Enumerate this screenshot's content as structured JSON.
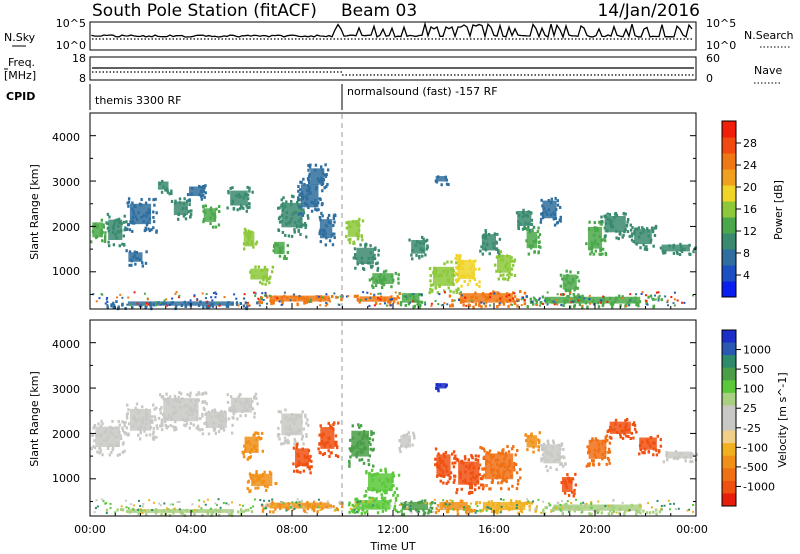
{
  "header": {
    "title": "South Pole Station (fitACF)",
    "beam": "Beam 03",
    "date": "14/Jan/2016"
  },
  "top_panels": {
    "nsky_label": "N.Sky",
    "nsearch_label": "N.Search",
    "noise_ticks": [
      "10^5",
      "10^0"
    ],
    "freq_label_line1": "Freq.",
    "freq_label_line2": "[MHz]",
    "freq_ticks": [
      "18",
      "8"
    ],
    "nave_label": "Nave",
    "nave_ticks": [
      "60",
      "0"
    ],
    "cpid_label": "CPID",
    "cpid_segments": [
      {
        "label": "themis 3300 RF",
        "start_hour": 0
      },
      {
        "label": "normalsound (fast) -157 RF",
        "start_hour": 10
      }
    ]
  },
  "x_axis": {
    "label": "Time UT",
    "ticks": [
      "00:00",
      "04:00",
      "08:00",
      "12:00",
      "16:00",
      "20:00",
      "00:00"
    ]
  },
  "chart_data": [
    {
      "type": "heatmap",
      "name": "power-panel",
      "xlabel": "Time UT",
      "ylabel": "Slant Range [km]",
      "xlim": [
        0,
        24
      ],
      "ylim": [
        180,
        4500
      ],
      "yticks": [
        "1000",
        "2000",
        "3000",
        "4000"
      ],
      "colorbar": {
        "label": "Power [dB]",
        "ticks": [
          "4",
          "8",
          "12",
          "16",
          "20",
          "24",
          "28"
        ],
        "min": 0,
        "max": 32,
        "colors": [
          "#0a1ef0",
          "#1c4fc2",
          "#2f6e9e",
          "#3a8a70",
          "#4aa84a",
          "#8cc83a",
          "#f0d428",
          "#f0a020",
          "#f07814",
          "#f04a10",
          "#f01e0a"
        ]
      },
      "cells": [
        [
          0,
          0.6,
          1650,
          2200,
          13
        ],
        [
          0.6,
          1.4,
          1550,
          2300,
          10
        ],
        [
          1.4,
          2.6,
          1900,
          2650,
          7
        ],
        [
          1.4,
          2.2,
          1150,
          1500,
          7
        ],
        [
          2.6,
          3.2,
          2750,
          3050,
          9
        ],
        [
          3.2,
          4.0,
          2150,
          2650,
          9
        ],
        [
          3.8,
          4.6,
          2600,
          2950,
          8
        ],
        [
          4.4,
          5.1,
          2000,
          2500,
          14
        ],
        [
          5.4,
          6.4,
          2350,
          2900,
          11
        ],
        [
          6.0,
          6.6,
          1450,
          2000,
          15
        ],
        [
          6.2,
          7.2,
          750,
          1150,
          17
        ],
        [
          7.2,
          7.8,
          1300,
          1750,
          12
        ],
        [
          7.4,
          8.6,
          1800,
          2700,
          10
        ],
        [
          8.2,
          9.2,
          2250,
          3100,
          8
        ],
        [
          8.6,
          9.4,
          2800,
          3400,
          7
        ],
        [
          9.0,
          9.7,
          1600,
          2300,
          6
        ],
        [
          10.1,
          10.8,
          1650,
          2250,
          15
        ],
        [
          10.4,
          11.4,
          1050,
          1650,
          11
        ],
        [
          11.0,
          12.2,
          650,
          1050,
          12
        ],
        [
          12.2,
          13.2,
          250,
          600,
          14
        ],
        [
          12.6,
          13.4,
          1300,
          1800,
          10
        ],
        [
          13.4,
          14.6,
          550,
          1250,
          15
        ],
        [
          14.4,
          15.4,
          700,
          1400,
          19
        ],
        [
          15.4,
          16.2,
          1350,
          1950,
          11
        ],
        [
          16.0,
          16.8,
          850,
          1500,
          17
        ],
        [
          16.8,
          17.6,
          1900,
          2450,
          9
        ],
        [
          17.2,
          17.8,
          1400,
          2000,
          14
        ],
        [
          17.8,
          18.6,
          2050,
          2700,
          8
        ],
        [
          18.6,
          19.4,
          500,
          1050,
          13
        ],
        [
          19.6,
          20.4,
          1350,
          2150,
          12
        ],
        [
          20.2,
          21.4,
          1750,
          2350,
          11
        ],
        [
          21.4,
          22.4,
          1500,
          2050,
          9
        ],
        [
          22.4,
          24.0,
          1400,
          1650,
          9
        ],
        [
          13.6,
          14.2,
          2950,
          3150,
          6
        ],
        [
          6.6,
          10.0,
          300,
          520,
          25
        ],
        [
          0.6,
          6.6,
          220,
          380,
          6
        ],
        [
          14.2,
          17.2,
          250,
          600,
          26
        ],
        [
          17.2,
          22.6,
          250,
          500,
          14
        ],
        [
          10.4,
          12.2,
          300,
          500,
          25
        ]
      ]
    },
    {
      "type": "heatmap",
      "name": "velocity-panel",
      "xlabel": "Time UT",
      "ylabel": "Slant Range [km]",
      "xlim": [
        0,
        24
      ],
      "ylim": [
        180,
        4500
      ],
      "yticks": [
        "1000",
        "2000",
        "3000",
        "4000"
      ],
      "colorbar": {
        "label": "Velocity [m s^-1]",
        "ticks": [
          "1000",
          "500",
          "100",
          "25",
          "-25",
          "-100",
          "-500",
          "-1000"
        ],
        "bands": [
          {
            "color": "#1c2ec8",
            "value": 1000
          },
          {
            "color": "#2858b0",
            "value": 750
          },
          {
            "color": "#2e8a6a",
            "value": 500
          },
          {
            "color": "#4a9e48",
            "value": 250
          },
          {
            "color": "#5ac83a",
            "value": 100
          },
          {
            "color": "#a8d080",
            "value": 60
          },
          {
            "color": "#c8c8c4",
            "value": 25
          },
          {
            "color": "#c8c8c4",
            "value": 0
          },
          {
            "color": "#f0d088",
            "value": -25
          },
          {
            "color": "#f0b020",
            "value": -60
          },
          {
            "color": "#f09018",
            "value": -100
          },
          {
            "color": "#f07014",
            "value": -250
          },
          {
            "color": "#f05010",
            "value": -500
          },
          {
            "color": "#e81e0c",
            "value": -1000
          }
        ]
      },
      "cells": [
        [
          0,
          1.4,
          1550,
          2300,
          0
        ],
        [
          1.4,
          2.6,
          1900,
          2700,
          0
        ],
        [
          2.6,
          4.6,
          2100,
          2950,
          0
        ],
        [
          4.4,
          5.6,
          2000,
          2600,
          0
        ],
        [
          5.4,
          6.6,
          2350,
          2900,
          0
        ],
        [
          7.4,
          8.6,
          1800,
          2600,
          0
        ],
        [
          6.0,
          6.8,
          1450,
          2050,
          -100
        ],
        [
          6.2,
          7.4,
          750,
          1200,
          -100
        ],
        [
          8.0,
          8.8,
          1150,
          1800,
          -500
        ],
        [
          9.0,
          9.8,
          1500,
          2300,
          -500
        ],
        [
          10.2,
          11.2,
          1300,
          2250,
          250
        ],
        [
          10.8,
          12.2,
          600,
          1250,
          100
        ],
        [
          12.2,
          12.8,
          1600,
          2050,
          0
        ],
        [
          13.6,
          14.4,
          900,
          1700,
          -500
        ],
        [
          14.4,
          15.6,
          700,
          1550,
          -500
        ],
        [
          15.4,
          17.0,
          800,
          1750,
          -250
        ],
        [
          17.2,
          17.8,
          1600,
          2050,
          -100
        ],
        [
          17.8,
          18.8,
          1200,
          1900,
          0
        ],
        [
          18.6,
          19.2,
          600,
          1150,
          -500
        ],
        [
          19.6,
          20.6,
          1300,
          2000,
          -250
        ],
        [
          20.4,
          21.6,
          1900,
          2350,
          -500
        ],
        [
          21.6,
          22.6,
          1550,
          2000,
          -500
        ],
        [
          22.6,
          24.0,
          1400,
          1650,
          0
        ],
        [
          13.6,
          14.2,
          2950,
          3150,
          1000
        ],
        [
          6.6,
          10.0,
          300,
          520,
          -100
        ],
        [
          0.6,
          6.6,
          220,
          360,
          60
        ],
        [
          10.2,
          12.2,
          250,
          600,
          100
        ],
        [
          12.2,
          13.6,
          250,
          550,
          250
        ],
        [
          13.6,
          15.2,
          250,
          550,
          -100
        ],
        [
          15.2,
          17.6,
          250,
          550,
          -60
        ],
        [
          17.6,
          22.6,
          250,
          480,
          60
        ]
      ]
    }
  ]
}
